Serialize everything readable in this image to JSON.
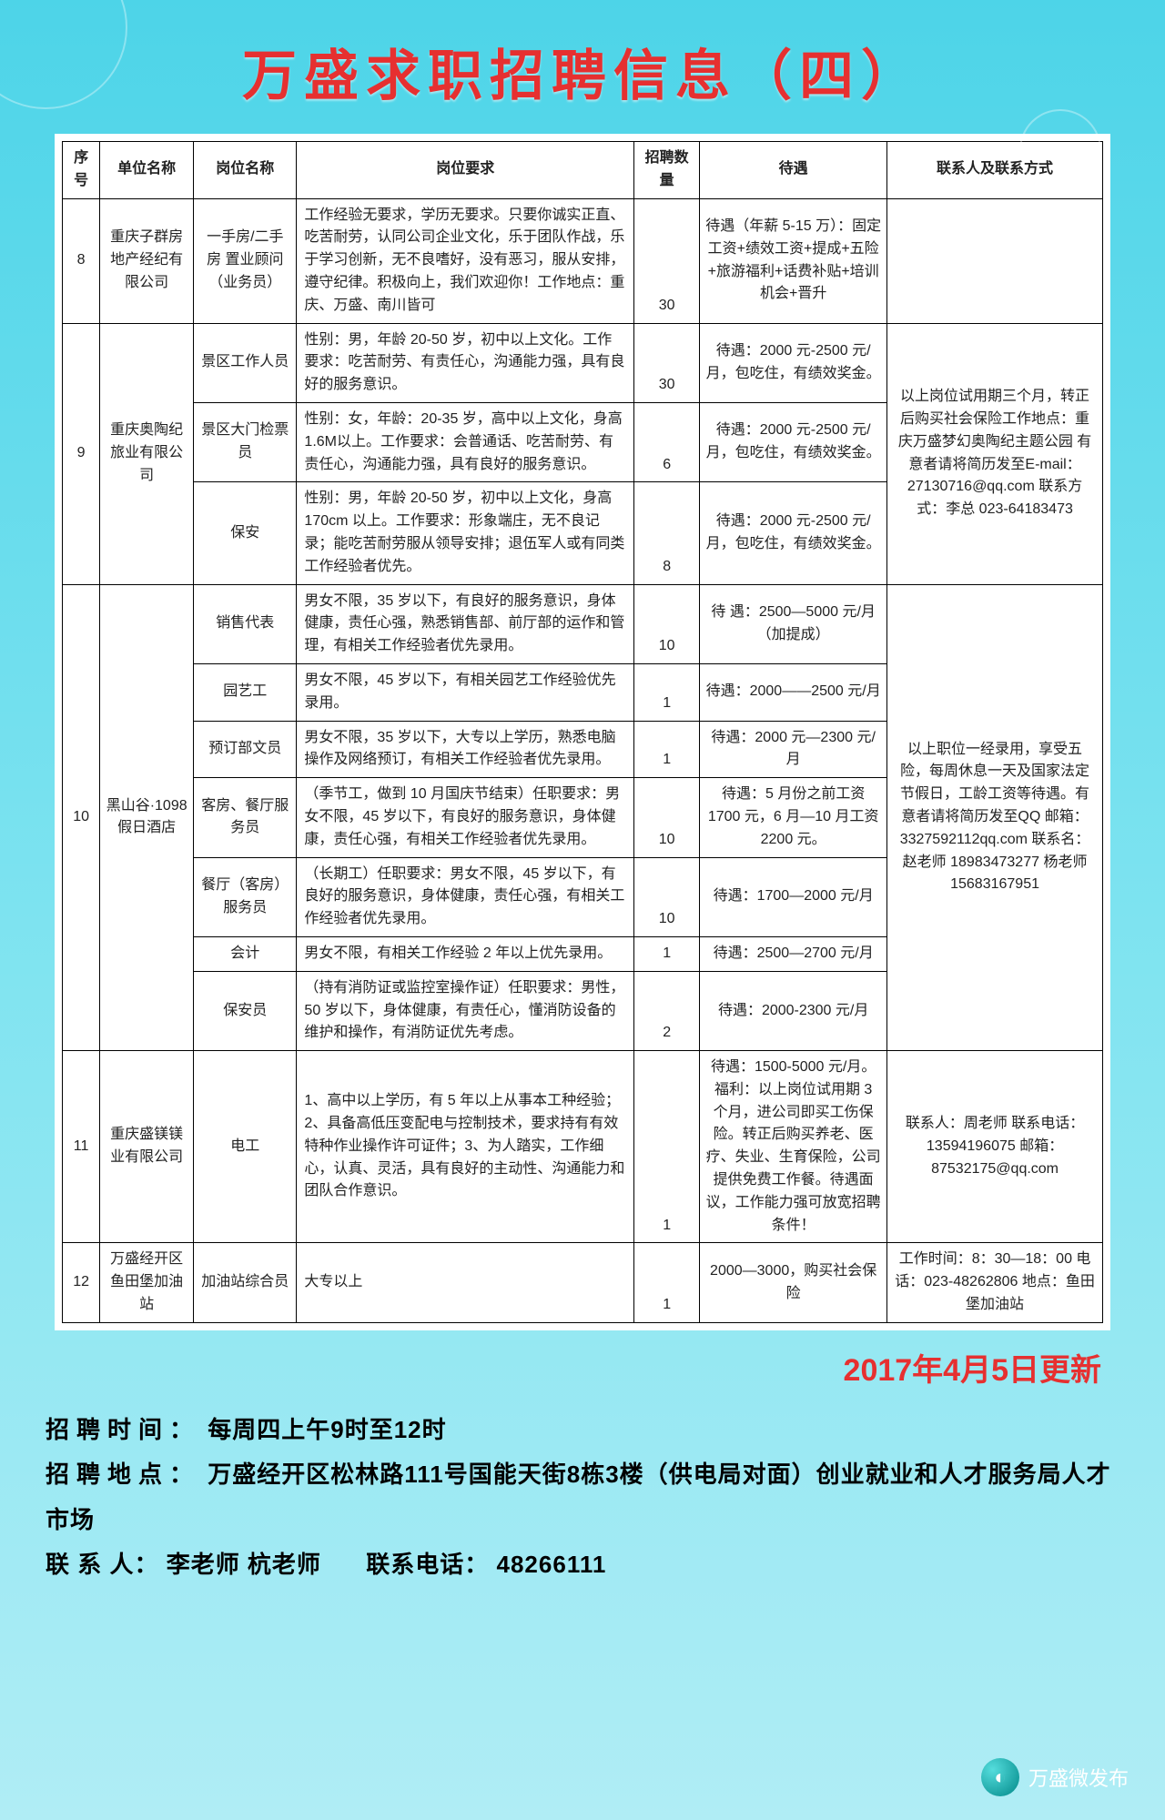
{
  "title": "万盛求职招聘信息（四）",
  "columns": [
    "序号",
    "单位名称",
    "岗位名称",
    "岗位要求",
    "招聘数量",
    "待遇",
    "联系人及联系方式"
  ],
  "rows": [
    {
      "seq": "8",
      "unit": "重庆子群房地产经纪有限公司",
      "positions": [
        {
          "name": "一手房/二手房 置业顾问（业务员）",
          "req": "工作经验无要求，学历无要求。只要你诚实正直、吃苦耐劳，认同公司企业文化，乐于团队作战，乐于学习创新，无不良嗜好，没有恶习，服从安排，遵守纪律。积极向上，我们欢迎你！工作地点：重庆、万盛、南川皆可",
          "qty": "30",
          "pay": "待遇（年薪 5-15 万）：固定工资+绩效工资+提成+五险+旅游福利+话费补贴+培训机会+晋升"
        }
      ],
      "contact": ""
    },
    {
      "seq": "9",
      "unit": "重庆奥陶纪旅业有限公司",
      "positions": [
        {
          "name": "景区工作人员",
          "req": "性别：男，年龄 20-50 岁，初中以上文化。工作要求：吃苦耐劳、有责任心，沟通能力强，具有良好的服务意识。",
          "qty": "30",
          "pay": "待遇：2000 元-2500 元/月，包吃住，有绩效奖金。"
        },
        {
          "name": "景区大门检票员",
          "req": "性别：女，年龄：20-35 岁，高中以上文化，身高 1.6M以上。工作要求：会普通话、吃苦耐劳、有责任心，沟通能力强，具有良好的服务意识。",
          "qty": "6",
          "pay": "待遇：2000 元-2500 元/月，包吃住，有绩效奖金。"
        },
        {
          "name": "保安",
          "req": "性别：男，年龄 20-50 岁，初中以上文化，身高 170cm 以上。工作要求：形象端庄，无不良记录；能吃苦耐劳服从领导安排；退伍军人或有同类工作经验者优先。",
          "qty": "8",
          "pay": "待遇：2000 元-2500 元/月，包吃住，有绩效奖金。"
        }
      ],
      "contact": "以上岗位试用期三个月，转正后购买社会保险工作地点：重庆万盛梦幻奥陶纪主题公园 有意者请将简历发至E-mail：27130716@qq.com  联系方式：李总 023-64183473"
    },
    {
      "seq": "10",
      "unit": "黑山谷·1098假日酒店",
      "positions": [
        {
          "name": "销售代表",
          "req": "男女不限，35 岁以下，有良好的服务意识，身体健康，责任心强，熟悉销售部、前厅部的运作和管理，有相关工作经验者优先录用。",
          "qty": "10",
          "pay": "待 遇：2500—5000 元/月（加提成）"
        },
        {
          "name": "园艺工",
          "req": "男女不限，45 岁以下，有相关园艺工作经验优先录用。",
          "qty": "1",
          "pay": "待遇：2000——2500 元/月"
        },
        {
          "name": "预订部文员",
          "req": "男女不限，35 岁以下，大专以上学历，熟悉电脑操作及网络预订，有相关工作经验者优先录用。",
          "qty": "1",
          "pay": "待遇：2000 元—2300 元/月"
        },
        {
          "name": "客房、餐厅服务员",
          "req": "（季节工，做到 10 月国庆节结束）任职要求：男女不限，45 岁以下，有良好的服务意识，身体健康，责任心强，有相关工作经验者优先录用。",
          "qty": "10",
          "pay": "待遇：5 月份之前工资 1700 元，6 月—10 月工资 2200 元。"
        },
        {
          "name": "餐厅（客房）服务员",
          "req": "（长期工）任职要求：男女不限，45 岁以下，有良好的服务意识，身体健康，责任心强，有相关工作经验者优先录用。",
          "qty": "10",
          "pay": "待遇：1700—2000 元/月"
        },
        {
          "name": "会计",
          "req": "男女不限，有相关工作经验 2 年以上优先录用。",
          "qty": "1",
          "pay": "待遇：2500—2700 元/月"
        },
        {
          "name": "保安员",
          "req": "（持有消防证或监控室操作证）任职要求：男性，50 岁以下，身体健康，有责任心，懂消防设备的维护和操作，有消防证优先考虑。",
          "qty": "2",
          "pay": "待遇：2000-2300 元/月"
        }
      ],
      "contact": "以上职位一经录用，享受五险，每周休息一天及国家法定节假日，工龄工资等待遇。有意者请将简历发至QQ 邮箱：3327592112qq.com 联系名：赵老师 18983473277 杨老师 15683167951"
    },
    {
      "seq": "11",
      "unit": "重庆盛镁镁业有限公司",
      "positions": [
        {
          "name": "电工",
          "req": "1、高中以上学历，有 5 年以上从事本工种经验；2、具备高低压变配电与控制技术，要求持有有效特种作业操作许可证件；3、为人踏实，工作细心，认真、灵活，具有良好的主动性、沟通能力和团队合作意识。",
          "qty": "1",
          "pay": "待遇：1500-5000 元/月。福利：以上岗位试用期 3 个月，进公司即买工伤保险。转正后购买养老、医疗、失业、生育保险，公司提供免费工作餐。待遇面议，工作能力强可放宽招聘条件！"
        }
      ],
      "contact": "联系人：周老师 联系电话：13594196075 邮箱：87532175@qq.com"
    },
    {
      "seq": "12",
      "unit": "万盛经开区鱼田堡加油站",
      "positions": [
        {
          "name": "加油站综合员",
          "req": "大专以上",
          "qty": "1",
          "pay": "2000—3000，购买社会保险"
        }
      ],
      "contact": "工作时间：8：30—18：00 电话：023-48262806 地点：鱼田堡加油站"
    }
  ],
  "update_date": "2017年4月5日更新",
  "footer": {
    "time_label": "招聘时间：",
    "time_value": "每周四上午9时至12时",
    "addr_label": "招聘地点：",
    "addr_value": "万盛经开区松林路111号国能天街8栋3楼（供电局对面）创业就业和人才服务局人才市场",
    "contact_label": "联 系 人：",
    "contact_value": "李老师 杭老师",
    "phone_label": "联系电话：",
    "phone_value": "48266111"
  },
  "source": "万盛微发布",
  "style": {
    "bg_top": "#4dd4e8",
    "bg_bottom": "#b0edf5",
    "title_color": "#e63030",
    "update_color": "#e63030",
    "border_color": "#000000",
    "body_font_size": 16,
    "title_font_size": 60,
    "footer_font_size": 26
  }
}
